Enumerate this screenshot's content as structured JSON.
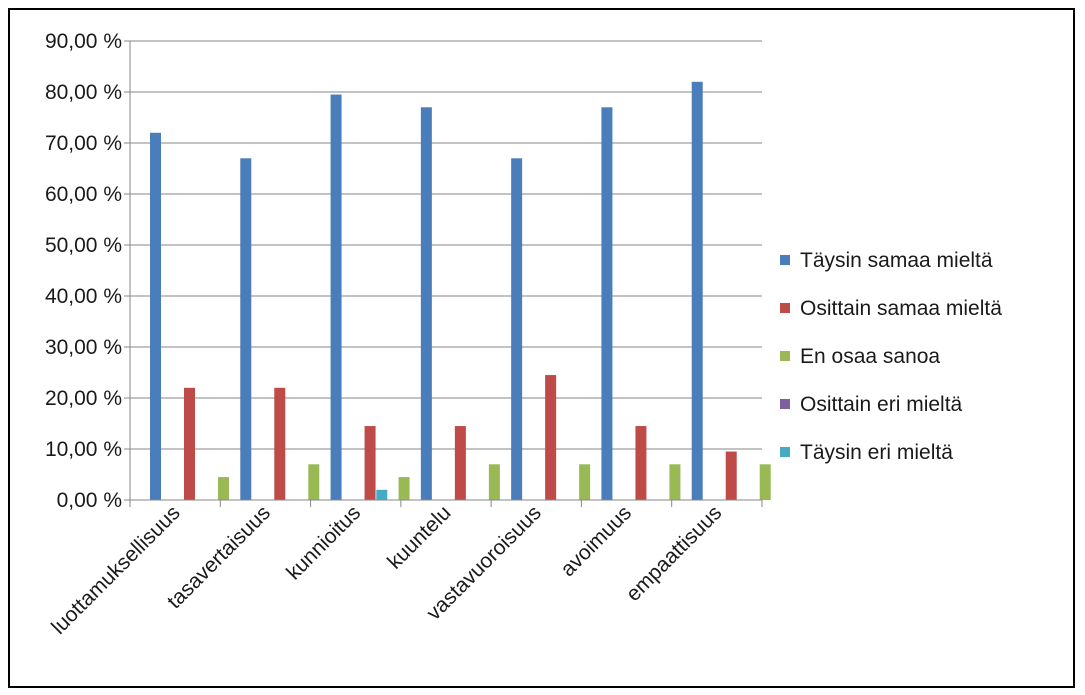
{
  "chart_data": {
    "type": "bar",
    "title": "",
    "xlabel": "",
    "ylabel": "",
    "ylim": [
      0,
      90
    ],
    "yticks": [
      "0,00 %",
      "10,00 %",
      "20,00 %",
      "30,00 %",
      "40,00 %",
      "50,00 %",
      "60,00 %",
      "70,00 %",
      "80,00 %",
      "90,00 %"
    ],
    "grid": true,
    "legend_position": "right",
    "categories": [
      "luottamuksellisuus",
      "tasavertaisuus",
      "kunnioitus",
      "kuuntelu",
      "vastavuoroisuus",
      "avoimuus",
      "empaattisuus"
    ],
    "series": [
      {
        "name": "Täysin samaa mieltä",
        "color": "#4a7ebb",
        "values": [
          72.0,
          67.0,
          79.5,
          77.0,
          67.0,
          77.0,
          82.0
        ]
      },
      {
        "name": "Osittain samaa mieltä",
        "color": "#be4b48",
        "values": [
          22.0,
          22.0,
          14.5,
          14.5,
          24.5,
          14.5,
          9.5
        ]
      },
      {
        "name": "En osaa sanoa",
        "color": "#98b954",
        "values": [
          4.5,
          7.0,
          4.5,
          7.0,
          7.0,
          7.0,
          7.0
        ]
      },
      {
        "name": "Osittain eri mieltä",
        "color": "#7d60a0",
        "values": [
          0,
          0,
          0,
          0,
          0,
          0,
          0
        ]
      },
      {
        "name": "Täysin eri mieltä",
        "color": "#46aac5",
        "values": [
          0,
          2.0,
          0,
          0,
          0,
          0,
          0
        ]
      }
    ]
  }
}
